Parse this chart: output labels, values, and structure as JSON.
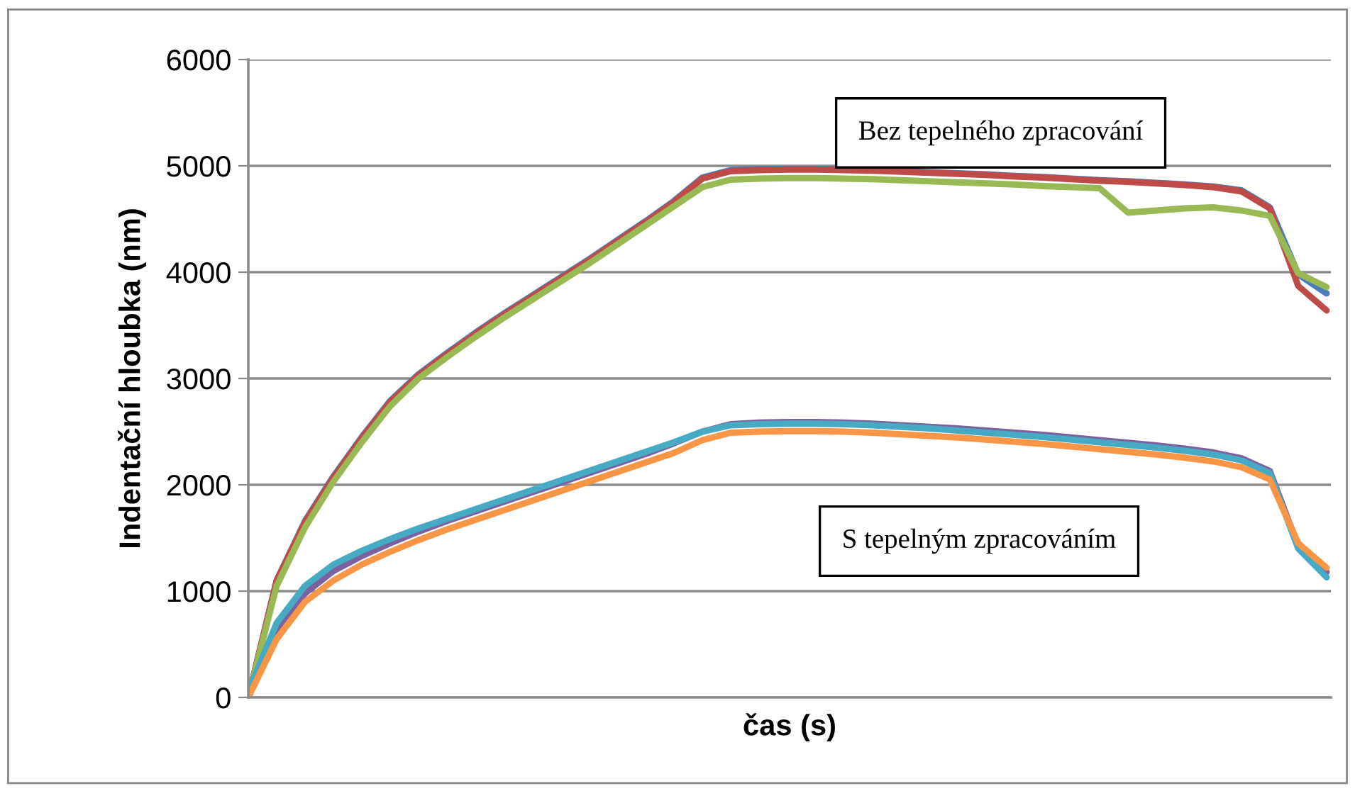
{
  "chart_data": {
    "type": "line",
    "xlabel": "čas (s)",
    "ylabel": "Indentační hloubka (nm)",
    "annotations": [
      "Bez tepelného zpracování",
      "S tepelným zpracováním"
    ],
    "categories": [
      null,
      null,
      null,
      null,
      null,
      null,
      null,
      null,
      null,
      null,
      null,
      null,
      null,
      null,
      null,
      null,
      null,
      null,
      null,
      null,
      null,
      null,
      null,
      null,
      null,
      null,
      null,
      null,
      null,
      null,
      null,
      null,
      null,
      null,
      null,
      null,
      null,
      null,
      null
    ],
    "series": [
      {
        "color": "#4a7ebb",
        "values": [
          0,
          1100,
          1660,
          2080,
          2450,
          2790,
          3040,
          3240,
          3430,
          3610,
          3780,
          3950,
          4120,
          4300,
          4480,
          4670,
          4890,
          4960,
          4970,
          4970,
          4970,
          4965,
          4960,
          4950,
          4940,
          4930,
          4920,
          4905,
          4895,
          4880,
          4865,
          4855,
          4840,
          4825,
          4805,
          4770,
          4610,
          3980,
          3800
        ]
      },
      {
        "color": "#be4b48",
        "values": [
          0,
          1100,
          1650,
          2070,
          2440,
          2780,
          3030,
          3230,
          3420,
          3600,
          3770,
          3940,
          4110,
          4290,
          4470,
          4660,
          4880,
          4950,
          4960,
          4965,
          4965,
          4960,
          4955,
          4945,
          4935,
          4925,
          4915,
          4900,
          4890,
          4875,
          4860,
          4850,
          4835,
          4820,
          4800,
          4760,
          4600,
          3870,
          3640
        ]
      },
      {
        "color": "#98b954",
        "values": [
          0,
          1050,
          1600,
          2030,
          2400,
          2740,
          3000,
          3200,
          3390,
          3570,
          3740,
          3910,
          4080,
          4260,
          4440,
          4620,
          4800,
          4870,
          4880,
          4885,
          4885,
          4880,
          4875,
          4865,
          4855,
          4845,
          4835,
          4825,
          4810,
          4800,
          4790,
          4560,
          4580,
          4600,
          4610,
          4580,
          4530,
          3990,
          3860
        ]
      },
      {
        "color": "#7d60a0",
        "values": [
          0,
          620,
          980,
          1190,
          1330,
          1450,
          1560,
          1660,
          1750,
          1840,
          1930,
          2020,
          2110,
          2200,
          2290,
          2390,
          2500,
          2570,
          2585,
          2590,
          2590,
          2585,
          2575,
          2560,
          2545,
          2530,
          2510,
          2490,
          2470,
          2445,
          2420,
          2395,
          2370,
          2340,
          2305,
          2250,
          2130,
          1420,
          1180
        ]
      },
      {
        "color": "#46aac5",
        "values": [
          50,
          700,
          1050,
          1250,
          1380,
          1490,
          1590,
          1680,
          1770,
          1860,
          1950,
          2040,
          2130,
          2220,
          2310,
          2400,
          2500,
          2560,
          2570,
          2575,
          2575,
          2570,
          2560,
          2545,
          2530,
          2510,
          2490,
          2470,
          2450,
          2425,
          2400,
          2375,
          2350,
          2320,
          2285,
          2230,
          2110,
          1400,
          1130
        ]
      },
      {
        "color": "#f79646",
        "values": [
          0,
          550,
          900,
          1100,
          1250,
          1370,
          1480,
          1580,
          1670,
          1760,
          1850,
          1940,
          2030,
          2120,
          2210,
          2300,
          2420,
          2490,
          2500,
          2505,
          2505,
          2500,
          2490,
          2475,
          2460,
          2445,
          2425,
          2405,
          2385,
          2360,
          2335,
          2310,
          2285,
          2255,
          2220,
          2165,
          2050,
          1450,
          1220
        ]
      }
    ],
    "ylim": [
      0,
      6000
    ],
    "yticks": [
      0,
      1000,
      2000,
      3000,
      4000,
      5000,
      6000
    ],
    "grid": "y",
    "tick_labels": "y",
    "legend": false
  }
}
